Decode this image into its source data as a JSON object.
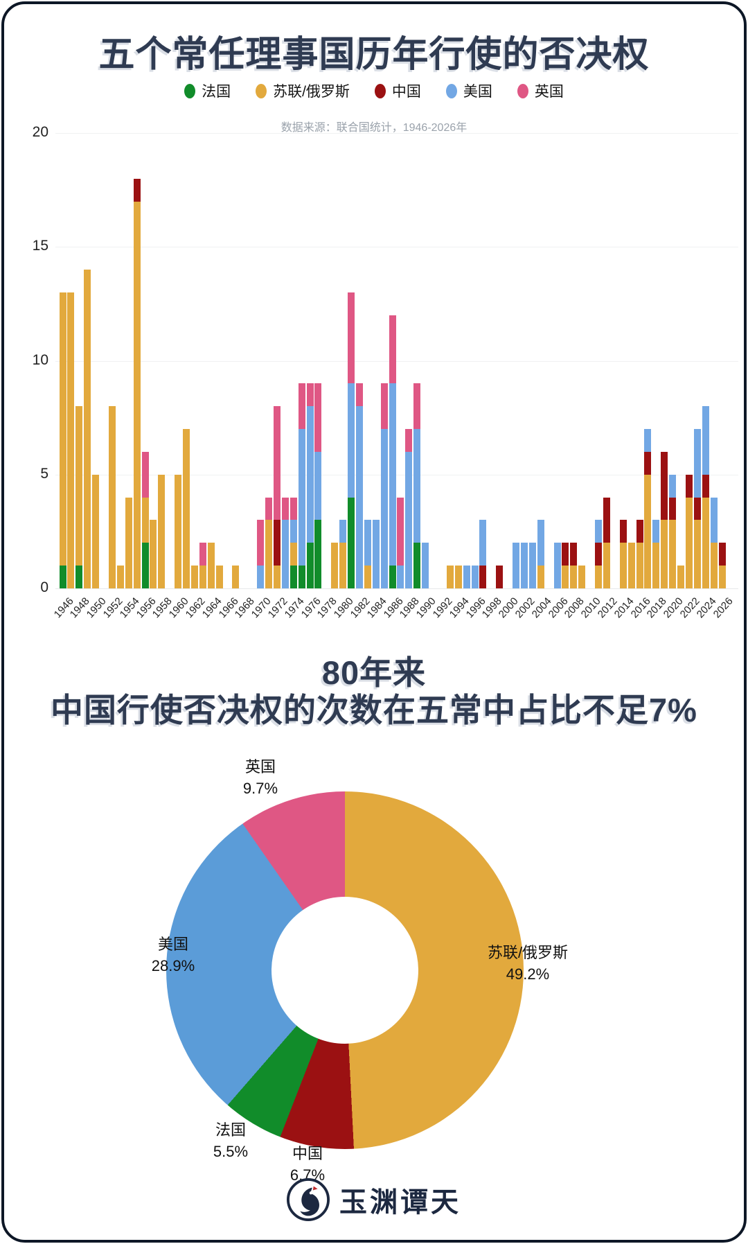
{
  "chart_data": [
    {
      "type": "bar",
      "stacked": true,
      "title": "五个常任理事国历年行使的否决权",
      "subtitle": "数据来源：联合国统计，1946-2026年",
      "xlabel": "",
      "ylabel": "",
      "ylim": [
        0,
        20
      ],
      "y_ticks": [
        0,
        5,
        10,
        15,
        20
      ],
      "grid": true,
      "legend_position": "top",
      "x_start_year": 1946,
      "x_end_year": 2026,
      "x_label_step": 2,
      "series": [
        {
          "name": "法国",
          "key": "france",
          "color": "#118c2a",
          "values": [
            1,
            0,
            1,
            0,
            0,
            0,
            0,
            0,
            0,
            0,
            2,
            0,
            0,
            0,
            0,
            0,
            0,
            0,
            0,
            0,
            0,
            0,
            0,
            0,
            0,
            0,
            0,
            0,
            1,
            1,
            2,
            3,
            0,
            0,
            0,
            4,
            0,
            0,
            0,
            0,
            1,
            0,
            0,
            2,
            0,
            0,
            0,
            0,
            0,
            0,
            0,
            0,
            0,
            0,
            0,
            0,
            0,
            0,
            0,
            0,
            0,
            0,
            0,
            0,
            0,
            0,
            0,
            0,
            0,
            0,
            0,
            0,
            0,
            0,
            0,
            0,
            0,
            0,
            0,
            0,
            0
          ]
        },
        {
          "name": "苏联/俄罗斯",
          "key": "ussr-russia",
          "color": "#e2a93d",
          "values": [
            12,
            13,
            7,
            14,
            5,
            0,
            8,
            1,
            4,
            17,
            2,
            3,
            5,
            0,
            5,
            7,
            1,
            1,
            2,
            1,
            0,
            1,
            0,
            0,
            0,
            3,
            1,
            0,
            1,
            0,
            0,
            0,
            0,
            2,
            2,
            0,
            0,
            1,
            0,
            0,
            0,
            0,
            0,
            0,
            0,
            0,
            0,
            1,
            1,
            0,
            0,
            0,
            0,
            0,
            0,
            0,
            0,
            0,
            1,
            0,
            0,
            1,
            1,
            1,
            0,
            1,
            2,
            0,
            2,
            2,
            2,
            5,
            2,
            3,
            3,
            1,
            4,
            3,
            4,
            2,
            1
          ]
        },
        {
          "name": "中国",
          "key": "china",
          "color": "#9b1112",
          "values": [
            0,
            0,
            0,
            0,
            0,
            0,
            0,
            0,
            0,
            1,
            0,
            0,
            0,
            0,
            0,
            0,
            0,
            0,
            0,
            0,
            0,
            0,
            0,
            0,
            0,
            0,
            2,
            0,
            0,
            0,
            0,
            0,
            0,
            0,
            0,
            0,
            0,
            0,
            0,
            0,
            0,
            0,
            0,
            0,
            0,
            0,
            0,
            0,
            0,
            0,
            0,
            1,
            0,
            1,
            0,
            0,
            0,
            0,
            0,
            0,
            0,
            1,
            1,
            0,
            0,
            1,
            2,
            0,
            1,
            0,
            1,
            1,
            0,
            3,
            1,
            0,
            1,
            1,
            1,
            0,
            1
          ]
        },
        {
          "name": "美国",
          "key": "us",
          "color": "#72a7e4",
          "values": [
            0,
            0,
            0,
            0,
            0,
            0,
            0,
            0,
            0,
            0,
            0,
            0,
            0,
            0,
            0,
            0,
            0,
            0,
            0,
            0,
            0,
            0,
            0,
            0,
            1,
            0,
            0,
            3,
            1,
            6,
            6,
            3,
            0,
            0,
            1,
            5,
            8,
            2,
            3,
            7,
            8,
            1,
            6,
            5,
            2,
            0,
            0,
            0,
            0,
            1,
            1,
            2,
            0,
            0,
            0,
            2,
            2,
            2,
            2,
            0,
            2,
            0,
            0,
            0,
            0,
            1,
            0,
            0,
            0,
            0,
            0,
            1,
            1,
            0,
            1,
            0,
            0,
            3,
            3,
            2,
            0
          ]
        },
        {
          "name": "英国",
          "key": "uk",
          "color": "#df5784",
          "values": [
            0,
            0,
            0,
            0,
            0,
            0,
            0,
            0,
            0,
            0,
            2,
            0,
            0,
            0,
            0,
            0,
            0,
            1,
            0,
            0,
            0,
            0,
            0,
            0,
            2,
            1,
            5,
            1,
            1,
            2,
            1,
            3,
            0,
            0,
            0,
            4,
            1,
            0,
            0,
            2,
            3,
            3,
            1,
            2,
            0,
            0,
            0,
            0,
            0,
            0,
            0,
            0,
            0,
            0,
            0,
            0,
            0,
            0,
            0,
            0,
            0,
            0,
            0,
            0,
            0,
            0,
            0,
            0,
            0,
            0,
            0,
            0,
            0,
            0,
            0,
            0,
            0,
            0,
            0,
            0,
            0
          ]
        }
      ]
    },
    {
      "type": "pie",
      "donut": true,
      "title_line1": "80年来",
      "title_line2": "中国行使否决权的次数在五常中占比不足7%",
      "start_angle_deg": 0,
      "clockwise": true,
      "slices": [
        {
          "label": "苏联/俄罗斯",
          "pct": 49.2,
          "pct_label": "49.2%",
          "color": "#e2a93d"
        },
        {
          "label": "中国",
          "pct": 6.7,
          "pct_label": "6.7%",
          "color": "#9b1112"
        },
        {
          "label": "法国",
          "pct": 5.5,
          "pct_label": "5.5%",
          "color": "#118c2a"
        },
        {
          "label": "美国",
          "pct": 28.9,
          "pct_label": "28.9%",
          "color": "#5b9cd8"
        },
        {
          "label": "英国",
          "pct": 9.7,
          "pct_label": "9.7%",
          "color": "#df5784"
        }
      ]
    }
  ],
  "footer": {
    "brand": "玉渊谭天"
  }
}
